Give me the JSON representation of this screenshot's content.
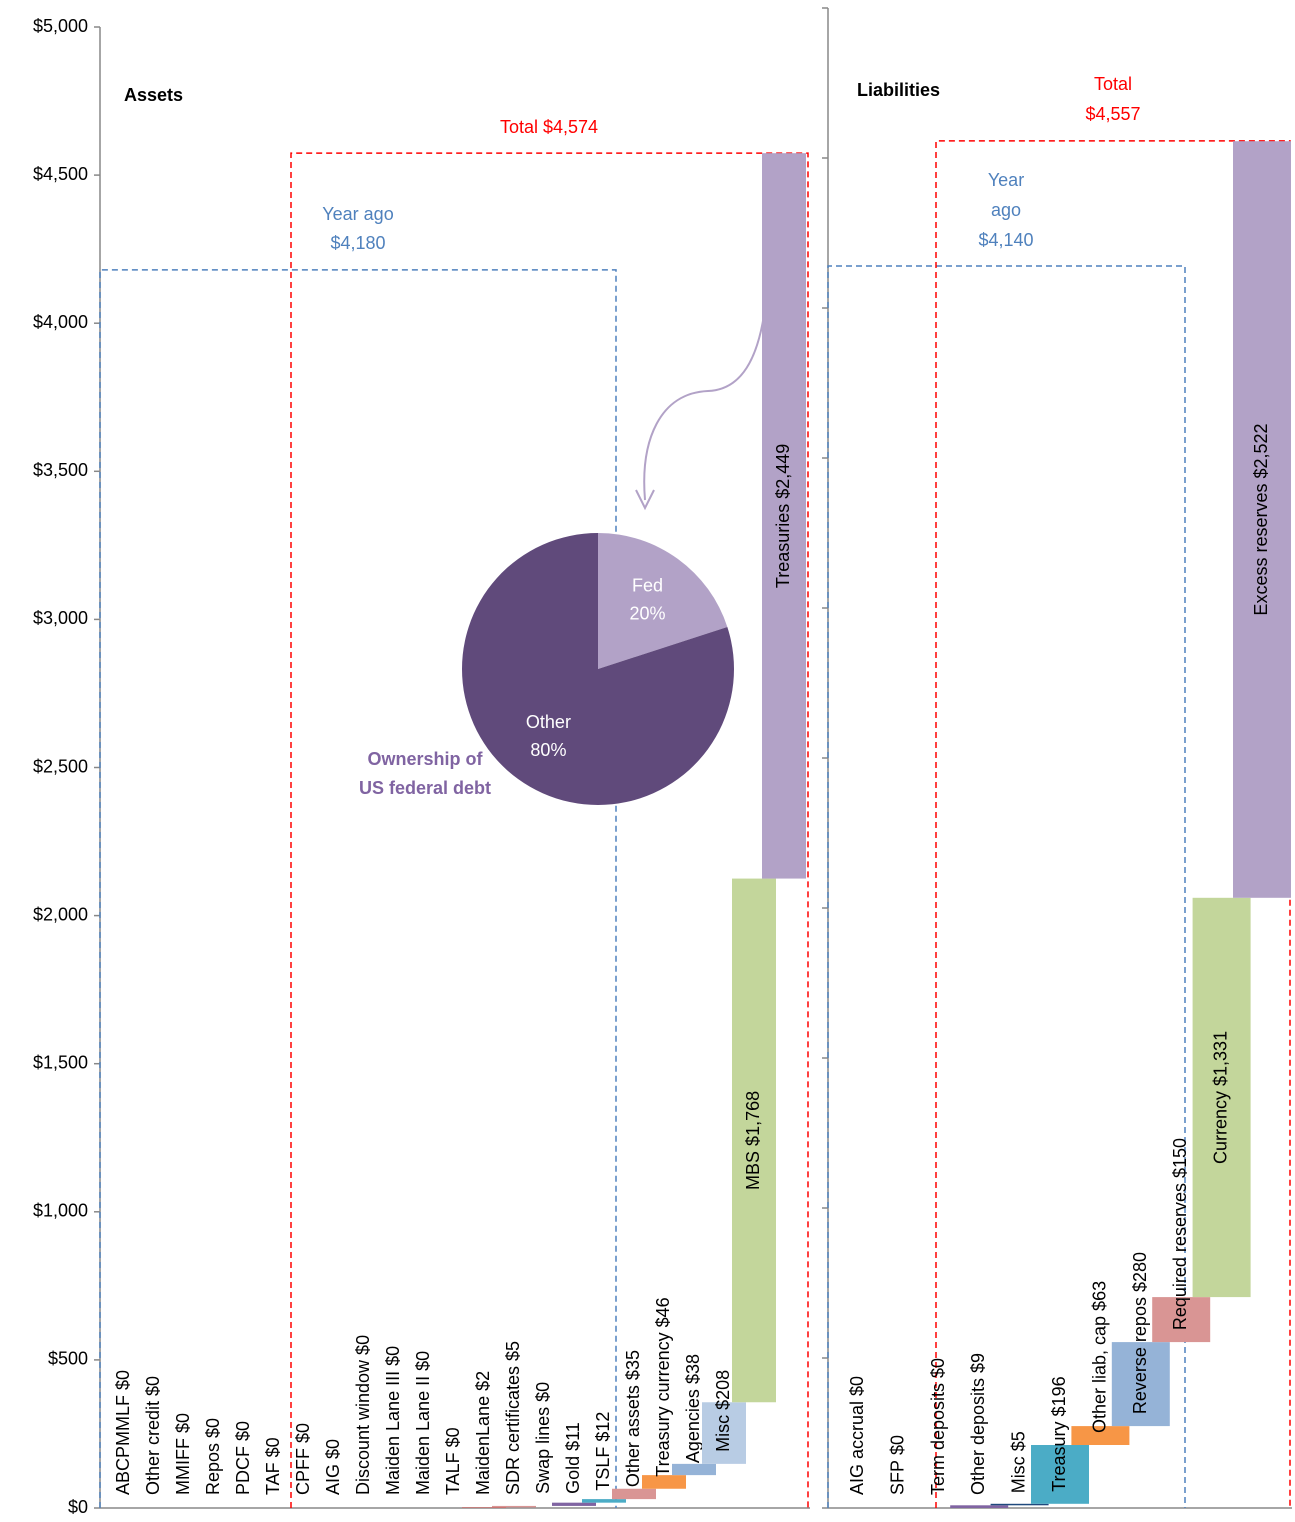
{
  "chart_data": [
    {
      "type": "waterfall",
      "title": "Assets",
      "categories": [
        "ABCPMMLF",
        "Other credit",
        "MMIFF",
        "Repos",
        "PDCF",
        "TAF",
        "CPFF",
        "AIG",
        "Discount window",
        "Maiden Lane III",
        "Maiden Lane II",
        "TALF",
        "MaidenLane",
        "SDR certificates",
        "Swap lines",
        "Gold",
        "TSLF",
        "Other assets",
        "Treasury currency",
        "Agencies",
        "Misc",
        "MBS",
        "Treasuries"
      ],
      "values": [
        0,
        0,
        0,
        0,
        0,
        0,
        0,
        0,
        0,
        0,
        0,
        0,
        2,
        5,
        0,
        11,
        12,
        35,
        46,
        38,
        208,
        1768,
        2449
      ],
      "value_labels": [
        "$0",
        "$0",
        "$0",
        "$0",
        "$0",
        "$0",
        "$0",
        "$0",
        "$0",
        "$0",
        "$0",
        "$0",
        "$2",
        "$5",
        "$0",
        "$11",
        "$12",
        "$35",
        "$46",
        "$38",
        "$208",
        "$1,768",
        "$2,449"
      ],
      "colors": [
        "#4f81bd",
        "#4f81bd",
        "#4f81bd",
        "#4f81bd",
        "#4f81bd",
        "#4f81bd",
        "#4f81bd",
        "#4f81bd",
        "#4f81bd",
        "#4f81bd",
        "#4f81bd",
        "#4f81bd",
        "#c0504d",
        "#d99594",
        "#4f81bd",
        "#8064a2",
        "#4bacc6",
        "#d99594",
        "#f79646",
        "#95b3d7",
        "#b8cce4",
        "#c3d69b",
        "#b2a2c7"
      ],
      "ylim": [
        0,
        5000
      ],
      "yticks": [
        {
          "value": 0,
          "label": "$0"
        },
        {
          "value": 500,
          "label": "$500"
        },
        {
          "value": 1000,
          "label": "$1,000"
        },
        {
          "value": 1500,
          "label": "$1,500"
        },
        {
          "value": 2000,
          "label": "$2,000"
        },
        {
          "value": 2500,
          "label": "$2,500"
        },
        {
          "value": 3000,
          "label": "$3,000"
        },
        {
          "value": 3500,
          "label": "$3,500"
        },
        {
          "value": 4000,
          "label": "$4,000"
        },
        {
          "value": 4500,
          "label": "$4,500"
        },
        {
          "value": 5000,
          "label": "$5,000"
        }
      ],
      "total": {
        "value": 4574,
        "label": [
          "Total $4,574"
        ]
      },
      "year_ago": {
        "value": 4180,
        "label": [
          "Year ago",
          "$4,180"
        ]
      }
    },
    {
      "type": "waterfall",
      "title": "Liabilities",
      "categories": [
        "AIG accrual",
        "SFP",
        "Term deposits",
        "Other deposits",
        "Misc",
        "Treasury",
        "Other liab, cap",
        "Reverse repos",
        "Required reserves",
        "Currency",
        "Excess reserves"
      ],
      "values": [
        0,
        0,
        0,
        9,
        5,
        196,
        63,
        280,
        150,
        1331,
        2522
      ],
      "value_labels": [
        "$0",
        "$0",
        "$0",
        "$9",
        "$5",
        "$196",
        "$63",
        "$280",
        "$150",
        "$1,331",
        "$2,522"
      ],
      "colors": [
        "#4f81bd",
        "#4f81bd",
        "#4f81bd",
        "#8064a2",
        "#1f497d",
        "#4bacc6",
        "#f79646",
        "#95b3d7",
        "#d99594",
        "#c3d69b",
        "#b2a2c7"
      ],
      "ylim": [
        0,
        5000
      ],
      "yticks": [
        0,
        500,
        1000,
        1500,
        2000,
        2500,
        3000,
        3500,
        4000,
        4500,
        5000
      ],
      "tick_labels": false,
      "total": {
        "value": 4557,
        "label": [
          "Total",
          "$4,557"
        ]
      },
      "year_ago": {
        "value": 4140,
        "label": [
          "Year",
          "ago",
          "$4,140"
        ]
      }
    },
    {
      "type": "pie",
      "title": [
        "Ownership of",
        "US federal debt"
      ],
      "categories": [
        "Fed",
        "Other"
      ],
      "values": [
        20,
        80
      ],
      "value_labels": [
        "20%",
        "80%"
      ],
      "colors": [
        "#b2a2c7",
        "#604a7b"
      ]
    }
  ]
}
